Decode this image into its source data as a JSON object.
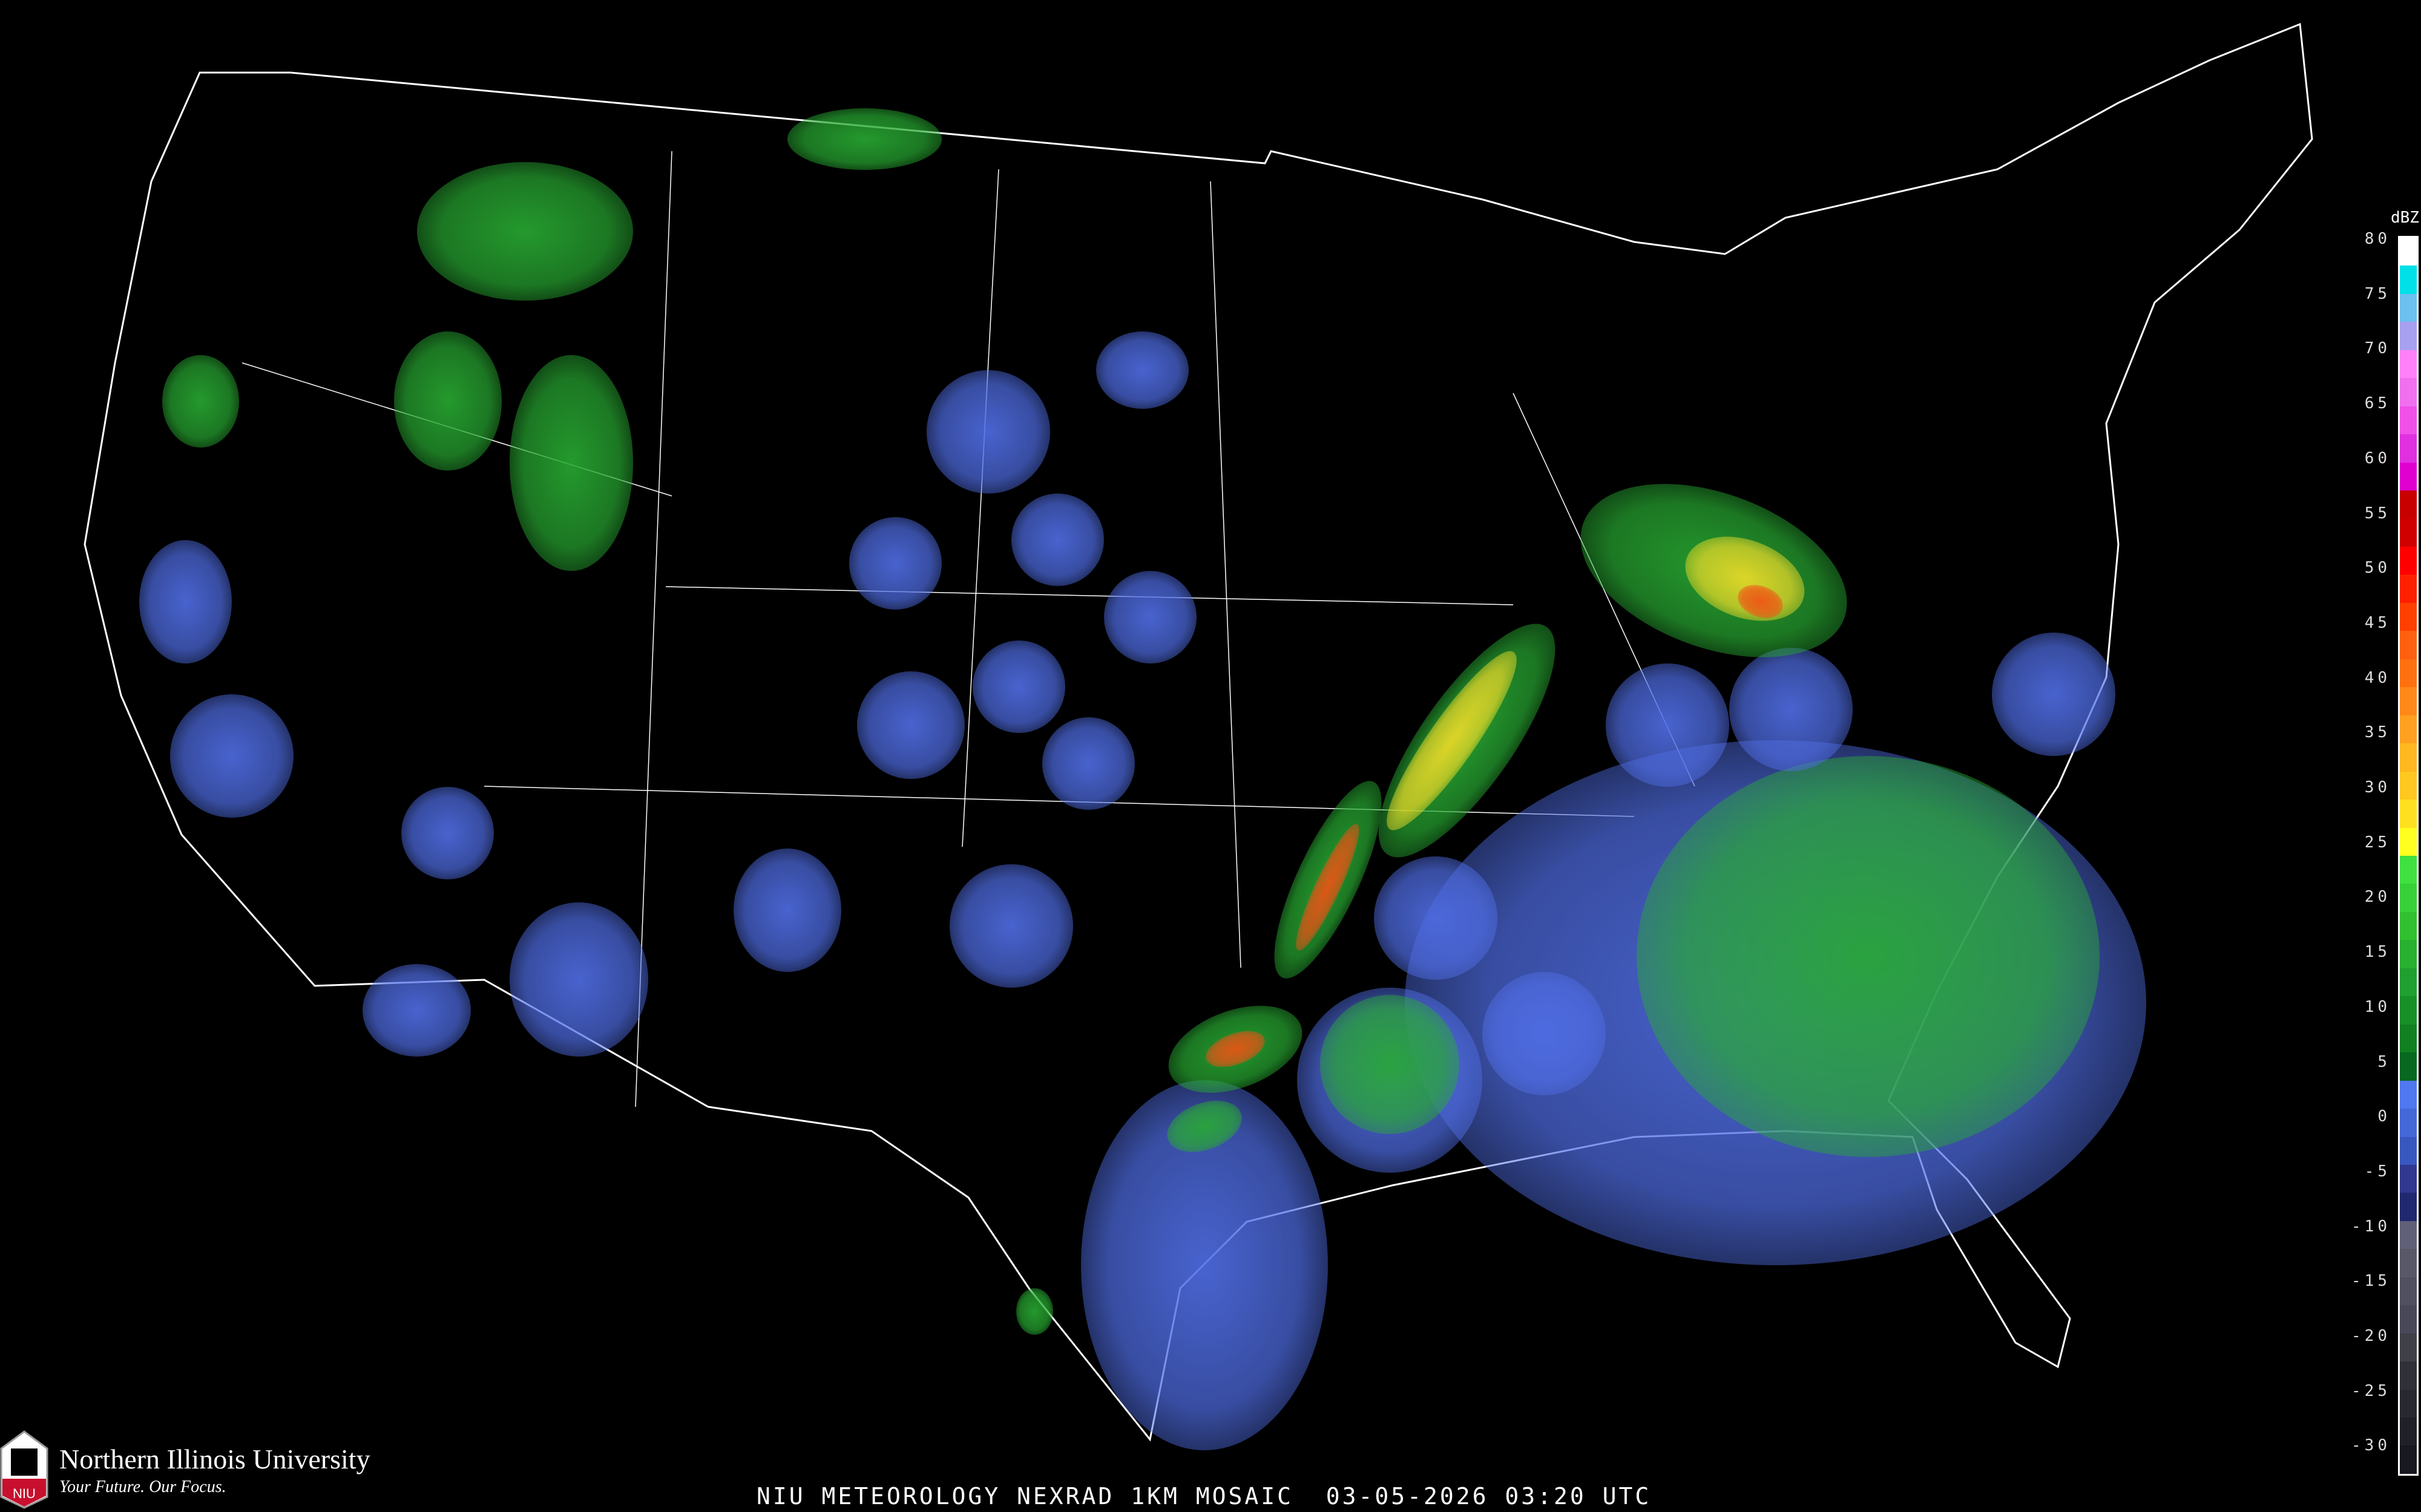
{
  "map": {
    "type": "radar reflectivity mosaic",
    "region": "Contiguous United States",
    "background": "#000000",
    "boundary_color": "#ffffff",
    "road_color": "#8b4a2a"
  },
  "legend": {
    "unit": "dBZ",
    "ticks": [
      "80",
      "75",
      "70",
      "65",
      "60",
      "55",
      "50",
      "45",
      "40",
      "35",
      "30",
      "25",
      "20",
      "15",
      "10",
      "5",
      "0",
      "-5",
      "-10",
      "-15",
      "-20",
      "-25",
      "-30"
    ],
    "colors": [
      "#ffffff",
      "#00e0e8",
      "#6cc0f0",
      "#a8a0f0",
      "#ff80f8",
      "#f070f0",
      "#f050e8",
      "#e030e0",
      "#e000d0",
      "#c80000",
      "#d00000",
      "#ff0000",
      "#ff2000",
      "#ff4000",
      "#ff6010",
      "#ff7010",
      "#ff8818",
      "#ffa020",
      "#ffb820",
      "#ffc820",
      "#ffe020",
      "#ffff20",
      "#40e040",
      "#38d038",
      "#30c030",
      "#28b030",
      "#20a030",
      "#189028",
      "#108020",
      "#086820",
      "#5078f0",
      "#4468d8",
      "#3858c0",
      "#303890",
      "#202870",
      "#606078",
      "#585868",
      "#505060",
      "#484858",
      "#404048",
      "#303038",
      "#282830",
      "#202028",
      "#181820"
    ]
  },
  "logo": {
    "name": "Northern Illinois University",
    "tagline": "Your Future. Our Focus.",
    "mark": "NIU"
  },
  "caption": "NIU METEOROLOGY NEXRAD 1KM MOSAIC  03-05-2026 03:20 UTC"
}
